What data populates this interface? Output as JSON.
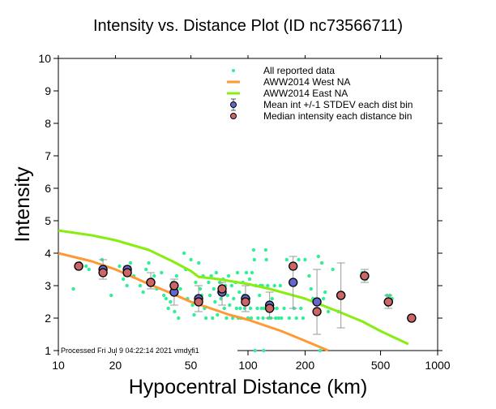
{
  "chart_data": {
    "type": "scatter",
    "title": "Intensity vs. Distance Plot (ID nc73566711)",
    "xlabel": "Hypocentral Distance (km)",
    "ylabel": "Intensity",
    "xscale": "log",
    "xlim": [
      10,
      1000
    ],
    "ylim": [
      1,
      10
    ],
    "x_ticks": [
      10,
      20,
      50,
      100,
      200,
      500,
      1000
    ],
    "x_tick_labels": [
      "10",
      "20",
      "50",
      "100",
      "200",
      "500",
      "1000"
    ],
    "y_ticks": [
      1,
      2,
      3,
      4,
      5,
      6,
      7,
      8,
      9,
      10
    ],
    "y_tick_labels": [
      "1",
      "2",
      "3",
      "4",
      "5",
      "6",
      "7",
      "8",
      "9",
      "10"
    ],
    "grid": false,
    "legend_position": "top-right",
    "processed_note": "Processed Fri Jul  9 04:22:14 2021 vmdyfi1",
    "legend": [
      {
        "key": "all",
        "label": "All reported data",
        "color": "#33ee99",
        "kind": "dot"
      },
      {
        "key": "west",
        "label": "AWW2014 West NA",
        "color": "#ff9933",
        "kind": "line"
      },
      {
        "key": "east",
        "label": "AWW2014 East NA",
        "color": "#88ee11",
        "kind": "line"
      },
      {
        "key": "mean",
        "label": "Mean int +/-1 STDEV each dist bin",
        "color": "#6666cc",
        "kind": "errorbar"
      },
      {
        "key": "median",
        "label": "Median intensity each distance bin",
        "color": "#cc6666",
        "kind": "circle"
      }
    ],
    "series": [
      {
        "name": "AWW2014 West NA",
        "kind": "line",
        "color": "#ff9933",
        "points": [
          [
            10,
            4.0
          ],
          [
            15,
            3.75
          ],
          [
            20,
            3.5
          ],
          [
            30,
            3.05
          ],
          [
            40,
            2.75
          ],
          [
            50,
            2.5
          ],
          [
            60,
            2.35
          ],
          [
            80,
            2.1
          ],
          [
            100,
            1.95
          ],
          [
            150,
            1.6
          ],
          [
            200,
            1.3
          ],
          [
            265,
            1.0
          ]
        ]
      },
      {
        "name": "AWW2014 East NA",
        "kind": "line",
        "color": "#88ee11",
        "points": [
          [
            10,
            4.7
          ],
          [
            15,
            4.55
          ],
          [
            20,
            4.4
          ],
          [
            30,
            4.1
          ],
          [
            40,
            3.75
          ],
          [
            50,
            3.45
          ],
          [
            55,
            3.27
          ],
          [
            70,
            3.2
          ],
          [
            100,
            3.05
          ],
          [
            130,
            2.9
          ],
          [
            200,
            2.6
          ],
          [
            300,
            2.2
          ],
          [
            400,
            1.9
          ],
          [
            500,
            1.6
          ],
          [
            700,
            1.2
          ]
        ]
      },
      {
        "name": "Mean int +/-1 STDEV each dist bin",
        "kind": "errorbar",
        "color": "#6666cc",
        "points": [
          {
            "x": 12.8,
            "y": 3.6,
            "lo": 3.6,
            "hi": 3.6
          },
          {
            "x": 17.2,
            "y": 3.5,
            "lo": 3.2,
            "hi": 3.8
          },
          {
            "x": 23.1,
            "y": 3.5,
            "lo": 3.3,
            "hi": 3.6
          },
          {
            "x": 30.7,
            "y": 3.1,
            "lo": 2.9,
            "hi": 3.4
          },
          {
            "x": 40.8,
            "y": 2.8,
            "lo": 2.4,
            "hi": 3.2
          },
          {
            "x": 54.9,
            "y": 2.6,
            "lo": 2.2,
            "hi": 3.0
          },
          {
            "x": 73.0,
            "y": 2.8,
            "lo": 2.4,
            "hi": 3.1
          },
          {
            "x": 97.0,
            "y": 2.6,
            "lo": 2.2,
            "hi": 3.0
          },
          {
            "x": 130.0,
            "y": 2.4,
            "lo": 2.0,
            "hi": 2.8
          },
          {
            "x": 173.0,
            "y": 3.1,
            "lo": 2.3,
            "hi": 3.9
          },
          {
            "x": 231.0,
            "y": 2.5,
            "lo": 1.5,
            "hi": 3.5
          },
          {
            "x": 309.0,
            "y": 2.7,
            "lo": 1.7,
            "hi": 3.7
          },
          {
            "x": 412.0,
            "y": 3.3,
            "lo": 3.1,
            "hi": 3.5
          },
          {
            "x": 550.0,
            "y": 2.5,
            "lo": 2.3,
            "hi": 2.7
          },
          {
            "x": 729.0,
            "y": 2.0,
            "lo": 2.0,
            "hi": 2.0
          }
        ]
      },
      {
        "name": "Median intensity each distance bin",
        "kind": "circle",
        "color": "#cc6666",
        "points": [
          [
            12.8,
            3.6
          ],
          [
            17.2,
            3.4
          ],
          [
            23.1,
            3.4
          ],
          [
            30.7,
            3.1
          ],
          [
            40.8,
            3.0
          ],
          [
            54.9,
            2.5
          ],
          [
            73.0,
            2.9
          ],
          [
            97.0,
            2.5
          ],
          [
            130.0,
            2.3
          ],
          [
            173.0,
            3.6
          ],
          [
            231.0,
            2.2
          ],
          [
            309.0,
            2.7
          ],
          [
            412.0,
            3.3
          ],
          [
            550.0,
            2.5
          ],
          [
            729.0,
            2.0
          ]
        ]
      },
      {
        "name": "All reported data",
        "kind": "dot",
        "color": "#33ee99",
        "points": [
          [
            12,
            2.9
          ],
          [
            13,
            3.7
          ],
          [
            14,
            3.6
          ],
          [
            14.5,
            3.5
          ],
          [
            17,
            3.8
          ],
          [
            17.5,
            3.6
          ],
          [
            19,
            2.7
          ],
          [
            21,
            3.6
          ],
          [
            22,
            3.2
          ],
          [
            23,
            3.0
          ],
          [
            24,
            3.7
          ],
          [
            25,
            3.3
          ],
          [
            27,
            3.0
          ],
          [
            28,
            2.8
          ],
          [
            29,
            3.5
          ],
          [
            30,
            3.7
          ],
          [
            31,
            3.2
          ],
          [
            32,
            3.3
          ],
          [
            33,
            2.9
          ],
          [
            35,
            3.4
          ],
          [
            36,
            2.7
          ],
          [
            37,
            2.6
          ],
          [
            38,
            2.3
          ],
          [
            39,
            2.5
          ],
          [
            40,
            3.1
          ],
          [
            41,
            2.2
          ],
          [
            42,
            3.3
          ],
          [
            43,
            2.0
          ],
          [
            44,
            2.9
          ],
          [
            46,
            4.0
          ],
          [
            47,
            3.5
          ],
          [
            48,
            2.6
          ],
          [
            50,
            3.8
          ],
          [
            51,
            2.4
          ],
          [
            52,
            2.1
          ],
          [
            53,
            3.1
          ],
          [
            55,
            3.7
          ],
          [
            56,
            2.9
          ],
          [
            57,
            2.7
          ],
          [
            58,
            3.3
          ],
          [
            59,
            2.3
          ],
          [
            60,
            2.0
          ],
          [
            62,
            3.1
          ],
          [
            63,
            2.7
          ],
          [
            64,
            3.3
          ],
          [
            65,
            2.0
          ],
          [
            66,
            2.9
          ],
          [
            67,
            2.5
          ],
          [
            68,
            3.4
          ],
          [
            69,
            2.1
          ],
          [
            70,
            2.8
          ],
          [
            71,
            3.1
          ],
          [
            72,
            2.6
          ],
          [
            74,
            3.2
          ],
          [
            75,
            2.3
          ],
          [
            76,
            3.0
          ],
          [
            77,
            2.0
          ],
          [
            78,
            2.7
          ],
          [
            79,
            3.3
          ],
          [
            80,
            2.4
          ],
          [
            82,
            3.0
          ],
          [
            83,
            2.0
          ],
          [
            84,
            2.6
          ],
          [
            86,
            3.1
          ],
          [
            87,
            2.3
          ],
          [
            88,
            3.4
          ],
          [
            89,
            2.0
          ],
          [
            90,
            2.8
          ],
          [
            91,
            2.3
          ],
          [
            92,
            2.0
          ],
          [
            94,
            3.1
          ],
          [
            95,
            2.7
          ],
          [
            96,
            2.3
          ],
          [
            98,
            3.4
          ],
          [
            100,
            2.0
          ],
          [
            101,
            2.6
          ],
          [
            102,
            3.2
          ],
          [
            103,
            2.3
          ],
          [
            104,
            2.0
          ],
          [
            105,
            3.4
          ],
          [
            107,
            4.1
          ],
          [
            108,
            3.8
          ],
          [
            109,
            1.0
          ],
          [
            110,
            3.0
          ],
          [
            112,
            2.3
          ],
          [
            113,
            2.0
          ],
          [
            115,
            2.7
          ],
          [
            116,
            3.0
          ],
          [
            118,
            2.3
          ],
          [
            119,
            3.0
          ],
          [
            120,
            2.0
          ],
          [
            121,
            1.0
          ],
          [
            122,
            2.3
          ],
          [
            124,
            4.1
          ],
          [
            125,
            3.8
          ],
          [
            127,
            3.0
          ],
          [
            128,
            2.0
          ],
          [
            130,
            2.3
          ],
          [
            132,
            2.0
          ],
          [
            134,
            2.6
          ],
          [
            136,
            2.3
          ],
          [
            138,
            3.0
          ],
          [
            140,
            2.0
          ],
          [
            142,
            2.3
          ],
          [
            145,
            2.0
          ],
          [
            148,
            3.0
          ],
          [
            150,
            2.0
          ],
          [
            155,
            2.3
          ],
          [
            160,
            3.8
          ],
          [
            165,
            2.0
          ],
          [
            170,
            3.1
          ],
          [
            175,
            2.3
          ],
          [
            180,
            2.0
          ],
          [
            185,
            3.8
          ],
          [
            190,
            2.3
          ],
          [
            195,
            2.0
          ],
          [
            200,
            3.8
          ],
          [
            210,
            3.3
          ],
          [
            215,
            2.9
          ],
          [
            220,
            2.6
          ],
          [
            235,
            3.9
          ],
          [
            240,
            1.0
          ],
          [
            245,
            3.7
          ],
          [
            250,
            2.6
          ],
          [
            255,
            2.8
          ],
          [
            265,
            2.2
          ],
          [
            280,
            3.5
          ],
          [
            300,
            2.2
          ],
          [
            400,
            3.4
          ],
          [
            420,
            3.2
          ],
          [
            540,
            2.7
          ],
          [
            560,
            2.7
          ],
          [
            575,
            2.6
          ],
          [
            545,
            2.4
          ]
        ]
      }
    ]
  }
}
